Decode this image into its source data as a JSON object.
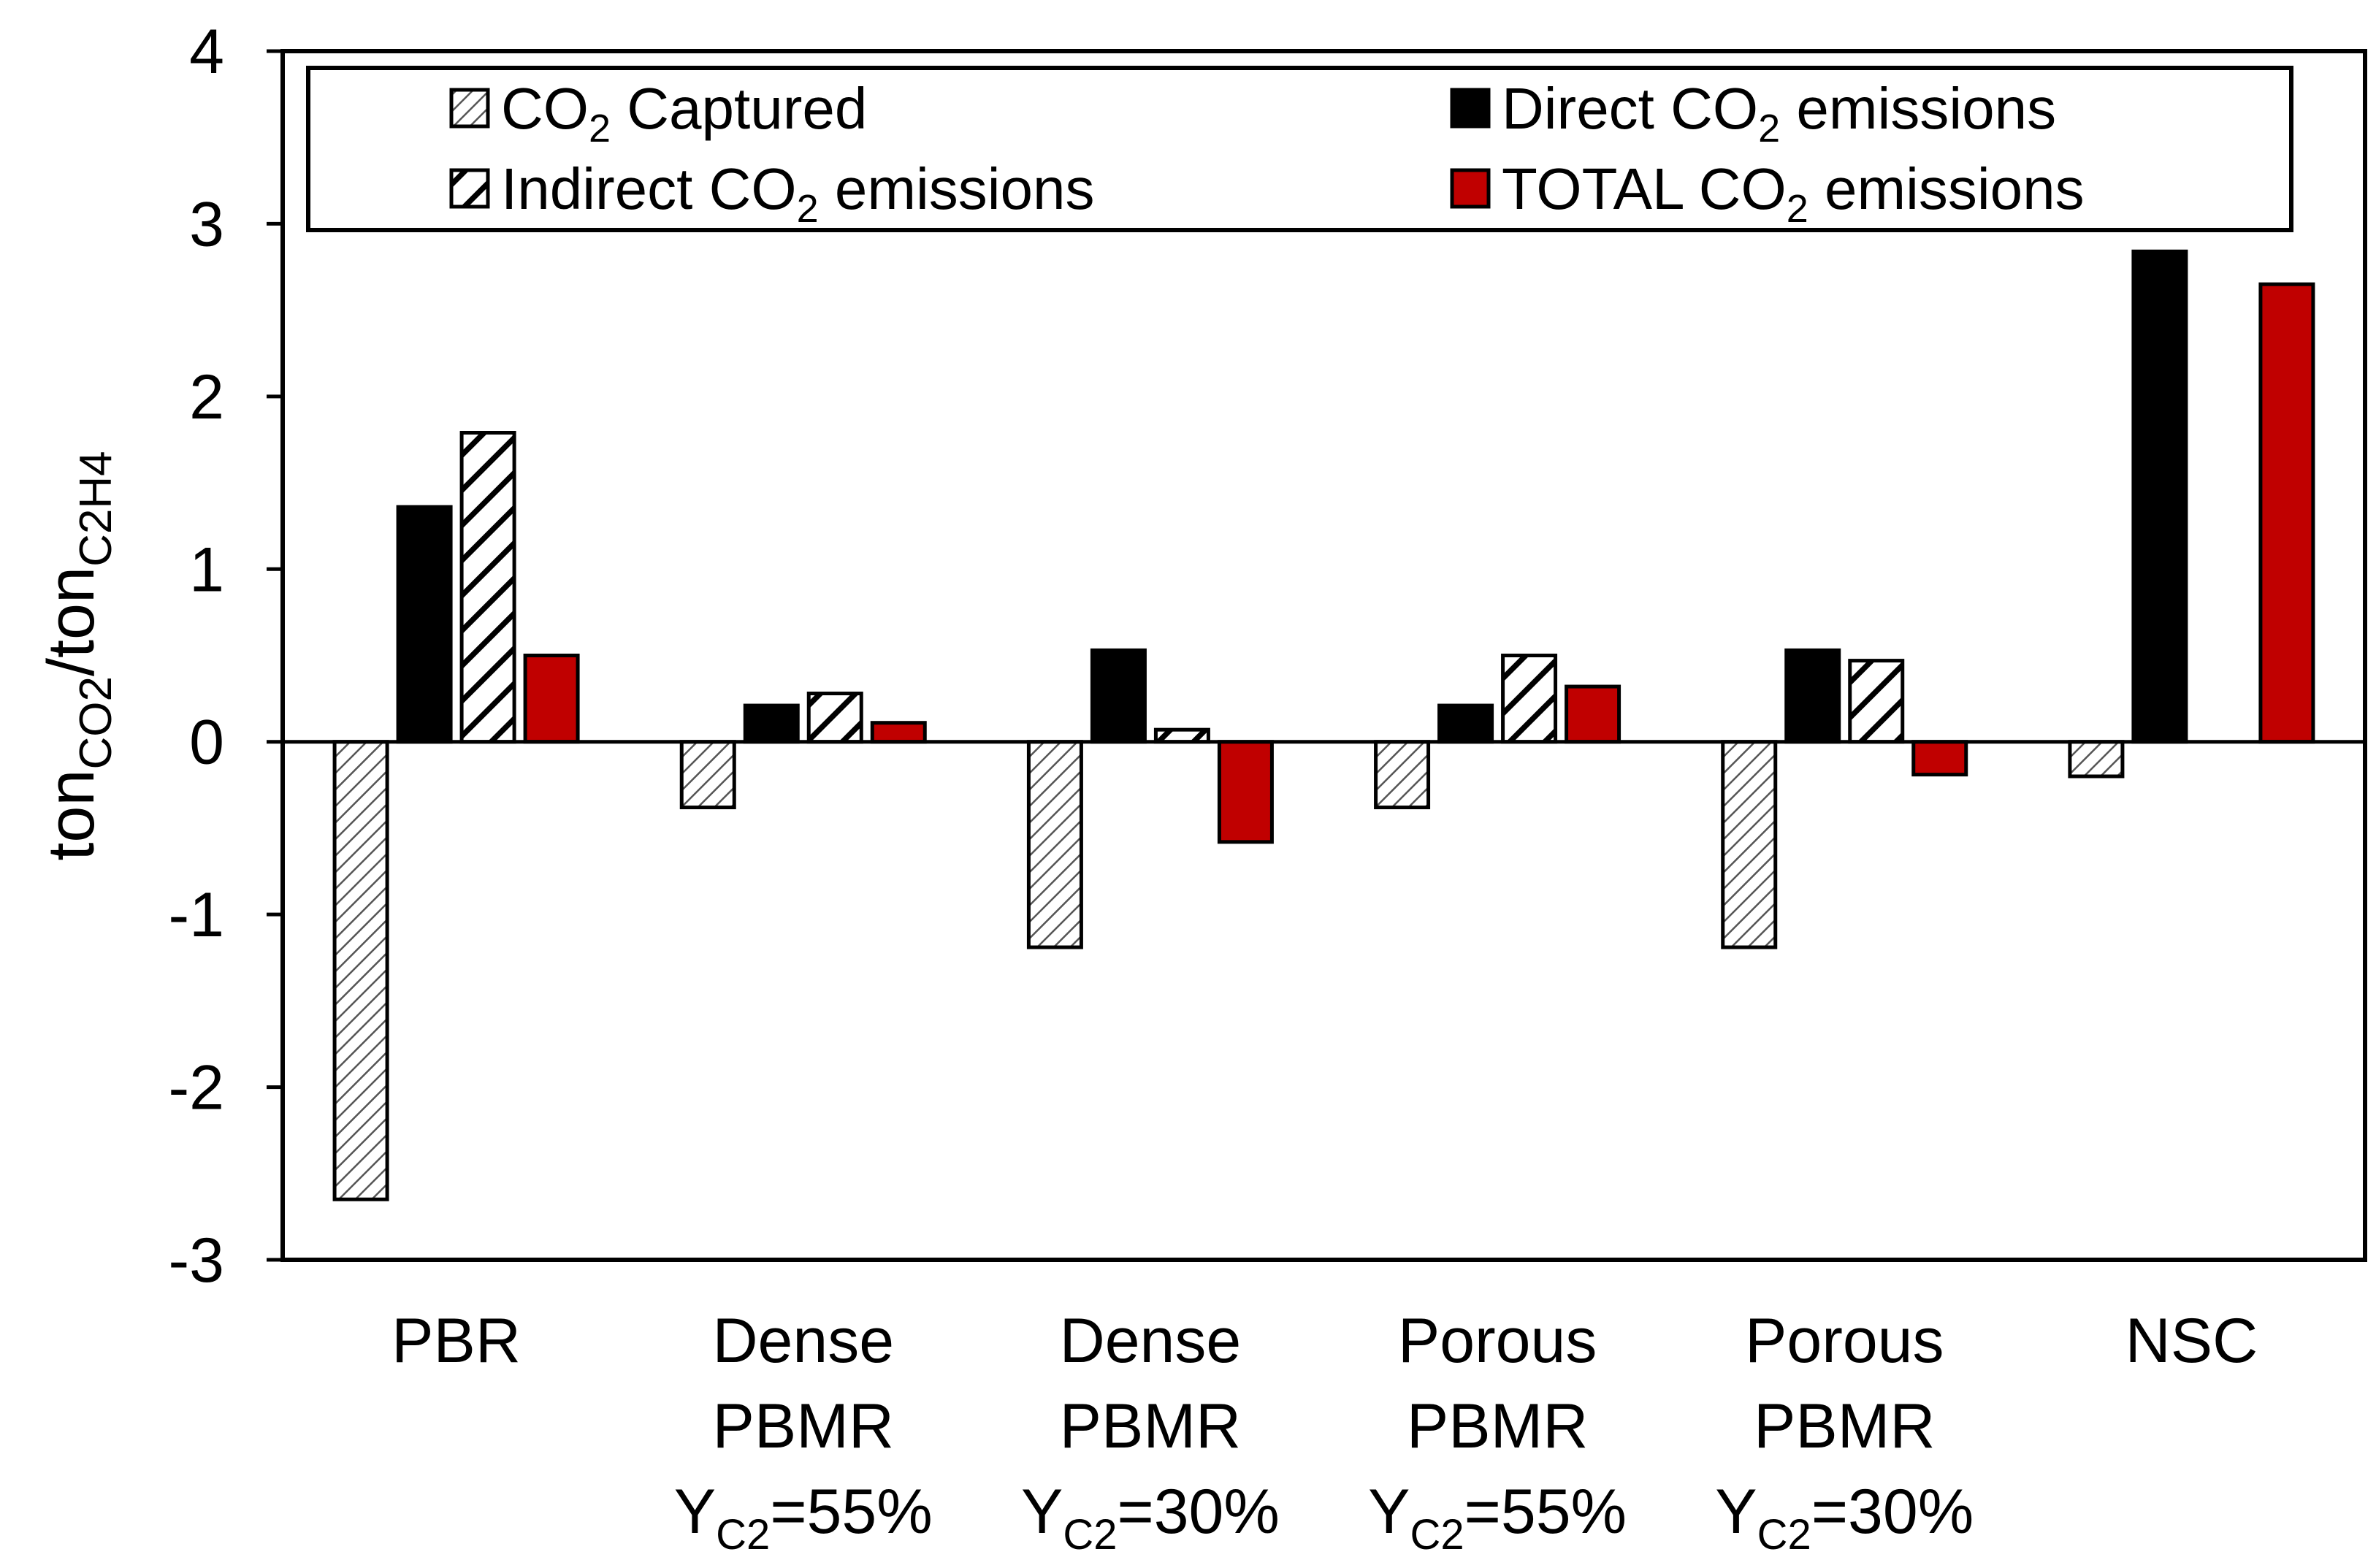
{
  "chart_data": {
    "type": "bar",
    "title": "",
    "xlabel": "",
    "ylabel": {
      "base1": "ton",
      "sub1": "CO2",
      "slash": "/",
      "base2": "ton",
      "sub2": "C2H4"
    },
    "ylim": [
      -3,
      4
    ],
    "yticks": [
      4,
      3,
      2,
      1,
      0,
      -1,
      -2,
      -3
    ],
    "grid": false,
    "legend_position": "top",
    "categories": [
      {
        "lines": [
          {
            "text": "PBR"
          }
        ]
      },
      {
        "lines": [
          {
            "text": "Dense"
          },
          {
            "text": "PBMR"
          },
          {
            "base": "Y",
            "sub": "C2",
            "rest": "=55%"
          }
        ]
      },
      {
        "lines": [
          {
            "text": "Dense"
          },
          {
            "text": "PBMR"
          },
          {
            "base": "Y",
            "sub": "C2",
            "rest": "=30%"
          }
        ]
      },
      {
        "lines": [
          {
            "text": "Porous"
          },
          {
            "text": "PBMR"
          },
          {
            "base": "Y",
            "sub": "C2",
            "rest": "=55%"
          }
        ]
      },
      {
        "lines": [
          {
            "text": "Porous"
          },
          {
            "text": "PBMR"
          },
          {
            "base": "Y",
            "sub": "C2",
            "rest": "=30%"
          }
        ]
      },
      {
        "lines": [
          {
            "text": "NSC"
          }
        ]
      }
    ],
    "series": [
      {
        "name": "CO2 Captured",
        "legend": {
          "pre": "CO",
          "sub": "2",
          "post": " Captured"
        },
        "style": "hatch-light",
        "values": [
          -2.65,
          -0.38,
          -1.19,
          -0.38,
          -1.19,
          -0.2
        ]
      },
      {
        "name": "Direct CO2 emissions",
        "legend": {
          "pre": "Direct CO",
          "sub": "2",
          "post": " emissions"
        },
        "style": "solid-black",
        "values": [
          1.36,
          0.21,
          0.53,
          0.21,
          0.53,
          2.84
        ]
      },
      {
        "name": "Indirect CO2 emissions",
        "legend": {
          "pre": "Indirect CO",
          "sub": "2",
          "post": " emissions"
        },
        "style": "hatch-bold",
        "values": [
          1.79,
          0.28,
          0.07,
          0.5,
          0.47,
          0.0
        ]
      },
      {
        "name": "TOTAL CO2 emissions",
        "legend": {
          "pre": "TOTAL CO",
          "sub": "2",
          "post": " emissions"
        },
        "style": "solid-red",
        "values": [
          0.5,
          0.11,
          -0.58,
          0.32,
          -0.19,
          2.65
        ]
      }
    ],
    "colors": {
      "red": "#c00000",
      "black": "#000000",
      "hatch_light": "#555555"
    }
  }
}
